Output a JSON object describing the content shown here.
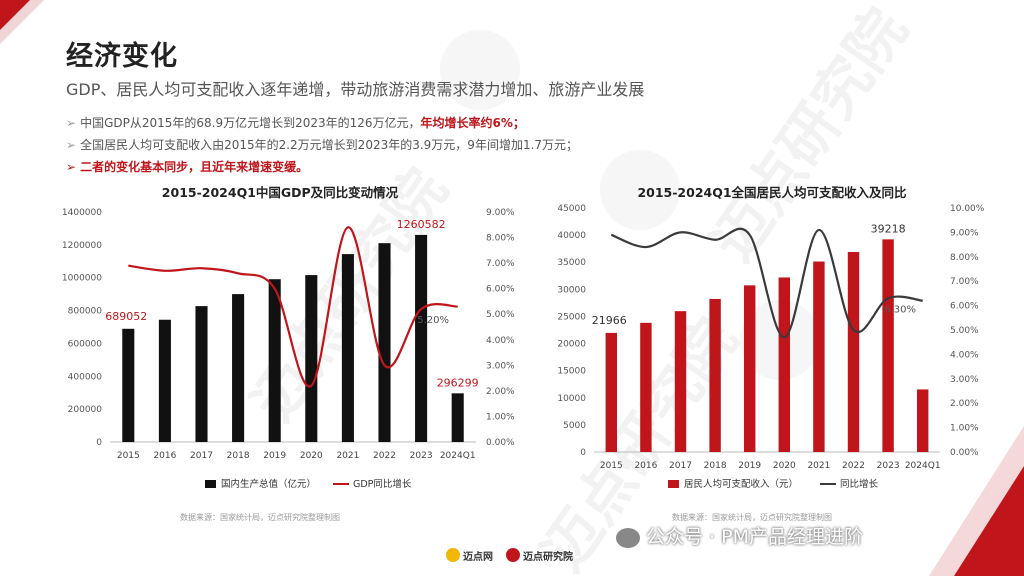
{
  "header": {
    "title": "经济变化",
    "subtitle": "GDP、居民人均可支配收入逐年递增，带动旅游消费需求潜力增加、旅游产业发展"
  },
  "bullets": [
    {
      "text": "中国GDP从2015年的68.9万亿元增长到2023年的126万亿元，",
      "highlight": "年均增长率约6%；"
    },
    {
      "text": "全国居民人均可支配收入由2015年的2.2万元增长到2023年的3.9万元，9年间增加1.7万元；",
      "highlight": ""
    },
    {
      "text": "",
      "highlight": "二者的变化基本同步，且近年来增速变缓。"
    }
  ],
  "colors": {
    "red": "#c0151b",
    "black": "#111111",
    "gray": "#3a3a3a"
  },
  "chart_data": [
    {
      "type": "bar+line",
      "title": "2015-2024Q1中国GDP及同比变动情况",
      "categories": [
        "2015",
        "2016",
        "2017",
        "2018",
        "2019",
        "2020",
        "2021",
        "2022",
        "2023",
        "2024Q1"
      ],
      "series": [
        {
          "name": "国内生产总值（亿元）",
          "type": "bar",
          "axis": "left",
          "values": [
            689052,
            744127,
            827122,
            900309,
            990865,
            1015986,
            1143670,
            1210207,
            1260582,
            296299
          ]
        },
        {
          "name": "GDP同比增长",
          "type": "line",
          "axis": "right",
          "values": [
            6.9,
            6.7,
            6.8,
            6.6,
            6.0,
            2.2,
            8.4,
            3.0,
            5.2,
            5.3
          ]
        }
      ],
      "data_labels": [
        {
          "index": 0,
          "text": "689052",
          "series": 0
        },
        {
          "index": 8,
          "text": "1260582",
          "series": 0
        },
        {
          "index": 9,
          "text": "296299",
          "series": 0
        },
        {
          "index": 8,
          "text": "5.20%",
          "series": 1
        }
      ],
      "ylim_left": [
        0,
        1400000
      ],
      "yticks_left": [
        "0",
        "200000",
        "400000",
        "600000",
        "800000",
        "1000000",
        "1200000",
        "1400000"
      ],
      "ylim_right": [
        0,
        9
      ],
      "yticks_right": [
        "0.00%",
        "1.00%",
        "2.00%",
        "3.00%",
        "4.00%",
        "5.00%",
        "6.00%",
        "7.00%",
        "8.00%",
        "9.00%"
      ],
      "legend_placement": "bottom",
      "source": "数据来源：国家统计局，迈点研究院整理制图"
    },
    {
      "type": "bar+line",
      "title": "2015-2024Q1全国居民人均可支配收入及同比",
      "categories": [
        "2015",
        "2016",
        "2017",
        "2018",
        "2019",
        "2020",
        "2021",
        "2022",
        "2023",
        "2024Q1"
      ],
      "series": [
        {
          "name": "居民人均可支配收入（元）",
          "type": "bar",
          "axis": "left",
          "values": [
            21966,
            23821,
            25974,
            28228,
            30733,
            32189,
            35128,
            36883,
            39218,
            11539
          ]
        },
        {
          "name": "同比增长",
          "type": "line",
          "axis": "right",
          "values": [
            8.9,
            8.4,
            9.0,
            8.7,
            8.9,
            4.7,
            9.1,
            5.0,
            6.3,
            6.2
          ]
        }
      ],
      "data_labels": [
        {
          "index": 0,
          "text": "21966",
          "series": 0
        },
        {
          "index": 8,
          "text": "39218",
          "series": 0
        },
        {
          "index": 8,
          "text": "6.30%",
          "series": 1
        }
      ],
      "ylim_left": [
        0,
        45000
      ],
      "yticks_left": [
        "0",
        "5000",
        "10000",
        "15000",
        "20000",
        "25000",
        "30000",
        "35000",
        "40000",
        "45000"
      ],
      "ylim_right": [
        0,
        10
      ],
      "yticks_right": [
        "0.00%",
        "1.00%",
        "2.00%",
        "3.00%",
        "4.00%",
        "5.00%",
        "6.00%",
        "7.00%",
        "8.00%",
        "9.00%",
        "10.00%"
      ],
      "legend_placement": "bottom",
      "source": "数据来源：国家统计局，迈点研究院整理制图"
    }
  ],
  "watermarks": [
    "迈点研究院",
    "MEADIN ACADEMY"
  ],
  "wechat": "公众号 · PM产品经理进阶",
  "footer": {
    "logo1": "迈点网",
    "logo2": "迈点研究院"
  }
}
